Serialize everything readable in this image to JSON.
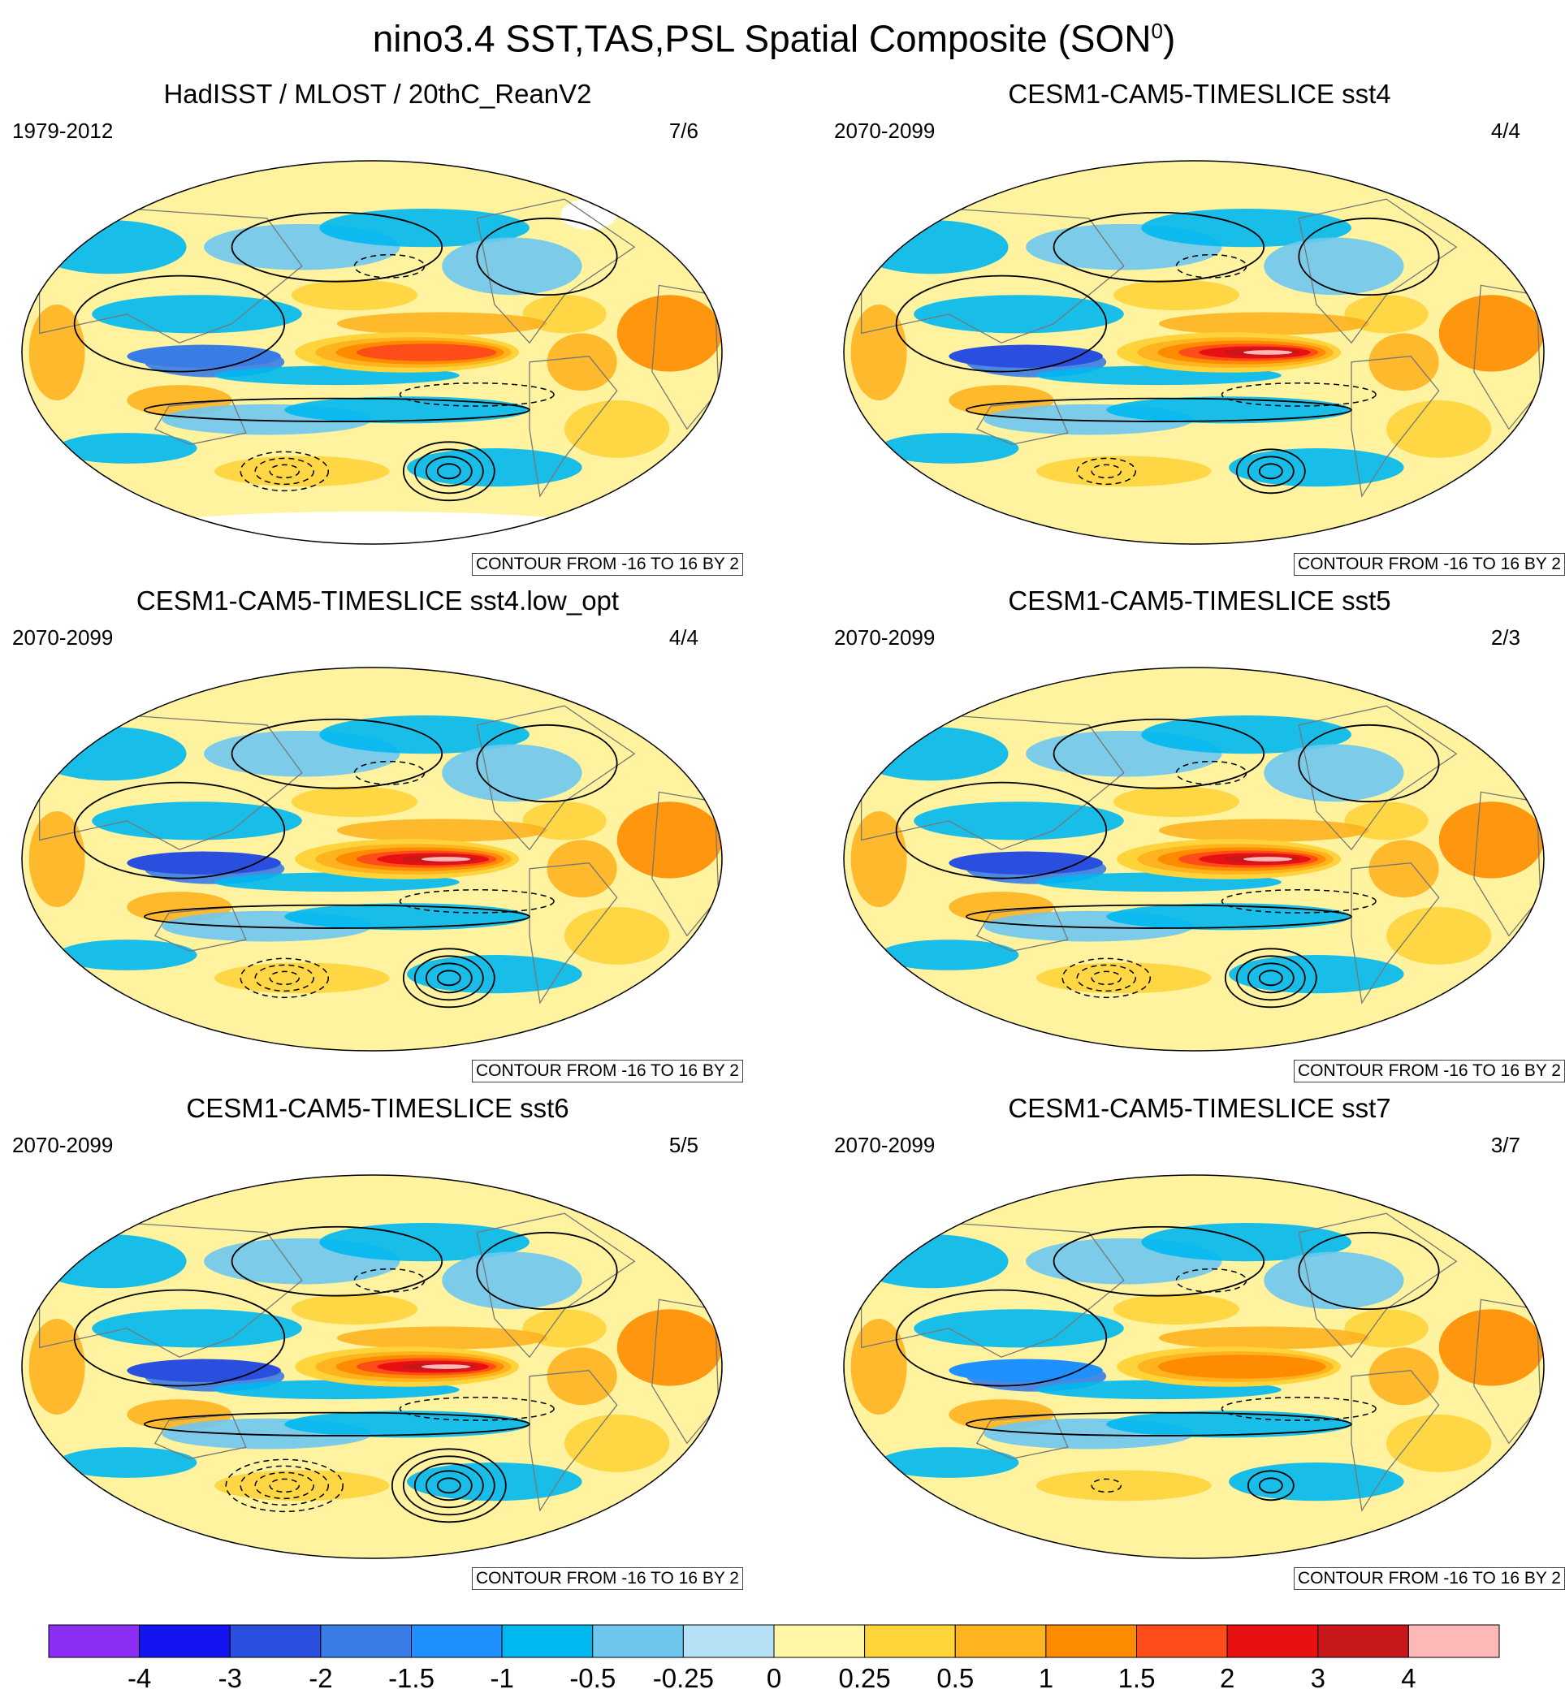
{
  "figure": {
    "title_main": "nino3.4 SST,TAS,PSL Spatial Composite (SON",
    "title_sup": "0",
    "title_close": ")"
  },
  "colors": {
    "levels": [
      "#8c2ff5",
      "#1414f0",
      "#2a4fde",
      "#3a7ce6",
      "#1e90ff",
      "#00b8f0",
      "#6ec6ef",
      "#b6e0f5",
      "#fff7a6",
      "#ffd43b",
      "#ffb31f",
      "#ff8c00",
      "#ff4d1a",
      "#e81010",
      "#c8171a",
      "#ffb8b8"
    ],
    "ocean_base": "#fff3a0",
    "missing": "#ffffff",
    "contour": "#000000"
  },
  "chart_data": [
    {
      "type": "heatmap",
      "title": "HadISST / MLOST / 20thC_ReanV2",
      "period": "1979-2012",
      "count": "7/6",
      "contour_label": "CONTOUR FROM -16 TO 16 BY 2",
      "el_nino_strength": 0.62,
      "southern_low_strength": 0.85,
      "has_missing": true
    },
    {
      "type": "heatmap",
      "title": "CESM1-CAM5-TIMESLICE sst4",
      "period": "2070-2099",
      "count": "4/4",
      "contour_label": "CONTOUR FROM -16 TO 16 BY 2",
      "el_nino_strength": 1.0,
      "southern_low_strength": 0.6,
      "has_missing": false
    },
    {
      "type": "heatmap",
      "title": "CESM1-CAM5-TIMESLICE sst4.low_opt",
      "period": "2070-2099",
      "count": "4/4",
      "contour_label": "CONTOUR FROM -16 TO 16 BY 2",
      "el_nino_strength": 1.0,
      "southern_low_strength": 0.8,
      "has_missing": false
    },
    {
      "type": "heatmap",
      "title": "CESM1-CAM5-TIMESLICE sst5",
      "period": "2070-2099",
      "count": "2/3",
      "contour_label": "CONTOUR FROM -16 TO 16 BY 2",
      "el_nino_strength": 0.95,
      "southern_low_strength": 0.8,
      "has_missing": false
    },
    {
      "type": "heatmap",
      "title": "CESM1-CAM5-TIMESLICE sst6",
      "period": "2070-2099",
      "count": "5/5",
      "contour_label": "CONTOUR FROM -16 TO 16 BY 2",
      "el_nino_strength": 0.95,
      "southern_low_strength": 0.9,
      "has_missing": false
    },
    {
      "type": "heatmap",
      "title": "CESM1-CAM5-TIMESLICE sst7",
      "period": "2070-2099",
      "count": "3/7",
      "contour_label": "CONTOUR FROM -16 TO 16 BY 2",
      "el_nino_strength": 0.45,
      "southern_low_strength": 0.3,
      "has_missing": false
    }
  ],
  "colorbar": {
    "tick_labels": [
      "-4",
      "-3",
      "-2",
      "-1.5",
      "-1",
      "-0.5",
      "-0.25",
      "0",
      "0.25",
      "0.5",
      "1",
      "1.5",
      "2",
      "3",
      "4"
    ]
  }
}
